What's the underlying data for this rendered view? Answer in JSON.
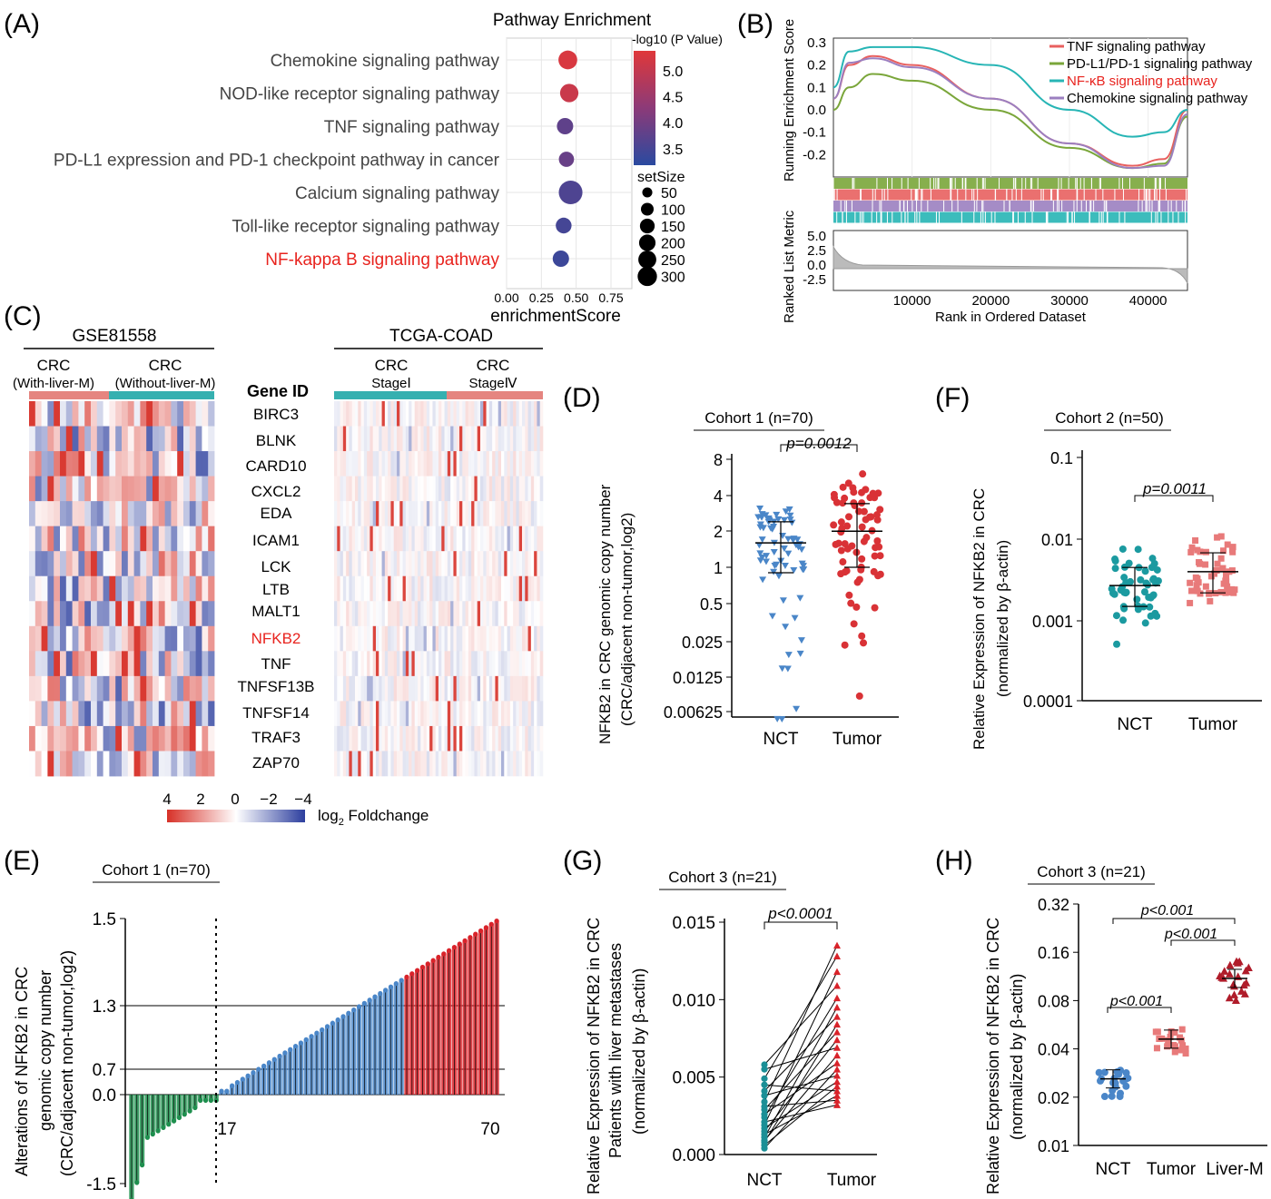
{
  "panels": {
    "A": "(A)",
    "B": "(B)",
    "C": "(C)",
    "D": "(D)",
    "E": "(E)",
    "F": "(F)",
    "G": "(G)",
    "H": "(H)"
  },
  "colors": {
    "red": "#d62728",
    "blue": "#4a86c8",
    "green": "#1e8f4e",
    "teal": "#1b9aa0",
    "salmon": "#e87a7a",
    "darkred": "#b01c2a",
    "grey": "#bbbbbb",
    "hm_red": "#d73027",
    "hm_blue": "#2c3e9e"
  },
  "chart_data": [
    {
      "panel": "A",
      "type": "scatter",
      "title": "Pathway Enrichment",
      "xlabel": "enrichmentScore",
      "xticks": [
        "0.00",
        "0.25",
        "0.50",
        "0.75"
      ],
      "xlim": [
        0,
        0.9
      ],
      "categories": [
        "Chemokine signaling pathway",
        "NOD-like receptor signaling pathway",
        "TNF signaling pathway",
        "PD-L1 expression and PD-1 checkpoint pathway in cancer",
        "Calcium signaling pathway",
        "Toll-like receptor signaling pathway",
        "NF-kappa B signaling pathway"
      ],
      "highlight": "NF-kappa B signaling pathway",
      "x": [
        0.44,
        0.45,
        0.42,
        0.43,
        0.46,
        0.41,
        0.39
      ],
      "neglog10p": [
        5.3,
        5.1,
        3.8,
        3.9,
        3.6,
        3.5,
        3.4
      ],
      "setsize": [
        150,
        140,
        100,
        80,
        280,
        90,
        100
      ],
      "colorbar": {
        "title": "-log10 (P Value)",
        "ticks": [
          "5.0",
          "4.5",
          "4.0",
          "3.5"
        ],
        "min": 3.2,
        "max": 5.4
      },
      "sizelegend": {
        "title": "setSize",
        "values": [
          "50",
          "100",
          "150",
          "200",
          "250",
          "300"
        ]
      }
    },
    {
      "panel": "B",
      "type": "line",
      "ylabel": "Running Enrichment Score",
      "ylabel2": "Ranked List Metric",
      "xlabel": "Rank in Ordered Dataset",
      "xticks": [
        "10000",
        "20000",
        "30000",
        "40000"
      ],
      "xmax": 45000,
      "yticks": [
        "0.3",
        "0.2",
        "0.1",
        "0.0",
        "-0.1",
        "-0.2"
      ],
      "ylim": [
        -0.3,
        0.32
      ],
      "y2ticks": [
        "5.0",
        "2.5",
        "0.0",
        "-2.5"
      ],
      "series": [
        {
          "name": "TNF signaling pathway",
          "color": "#e8605f",
          "x": [
            0,
            2000,
            5000,
            10000,
            20000,
            30000,
            38000,
            42000,
            45000
          ],
          "y": [
            0.05,
            0.2,
            0.24,
            0.2,
            0.05,
            -0.15,
            -0.25,
            -0.22,
            0.0
          ]
        },
        {
          "name": "PD-L1/PD-1 signaling pathway",
          "color": "#7aa63a",
          "x": [
            0,
            2000,
            5000,
            10000,
            20000,
            30000,
            38000,
            42000,
            45000
          ],
          "y": [
            0.0,
            0.1,
            0.16,
            0.13,
            0.0,
            -0.17,
            -0.26,
            -0.24,
            -0.03
          ]
        },
        {
          "name": "NF-κB signaling pathway",
          "color": "#27b5b5",
          "nameColor": "#e8231e",
          "x": [
            0,
            2000,
            5000,
            10000,
            20000,
            30000,
            38000,
            42000,
            45000
          ],
          "y": [
            0.1,
            0.26,
            0.28,
            0.28,
            0.2,
            0.0,
            -0.12,
            -0.1,
            0.0
          ]
        },
        {
          "name": "Chemokine signaling pathway",
          "color": "#9b7fc0",
          "x": [
            0,
            2000,
            5000,
            10000,
            20000,
            30000,
            38000,
            42000,
            45000
          ],
          "y": [
            0.05,
            0.21,
            0.23,
            0.19,
            0.05,
            -0.15,
            -0.26,
            -0.25,
            -0.02
          ]
        }
      ]
    },
    {
      "panel": "C",
      "type": "heatmap",
      "left_title": "GSE81558",
      "left_groups": [
        [
          "CRC",
          "(With-liver-M)"
        ],
        [
          "CRC",
          "(Without-liver-M)"
        ]
      ],
      "right_title": "TCGA-COAD",
      "right_groups": [
        [
          "CRC",
          "StageⅠ"
        ],
        [
          "CRC",
          "StageⅣ"
        ]
      ],
      "gene_header": "Gene ID",
      "genes": [
        "BIRC3",
        "BLNK",
        "CARD10",
        "CXCL2",
        "EDA",
        "ICAM1",
        "LCK",
        "LTB",
        "MALT1",
        "NFKB2",
        "TNF",
        "TNFSF13B",
        "TNFSF14",
        "TRAF3",
        "ZAP70"
      ],
      "highlight": "NFKB2",
      "scale_ticks": [
        "4",
        "2",
        "0",
        "−2",
        "−4"
      ],
      "scale_label": "log",
      "scale_sub": "2",
      "scale_label2": " Foldchange"
    },
    {
      "panel": "D",
      "type": "scatter",
      "cohort": "Cohort 1 (n=70)",
      "ylabel": "NFKB2 in CRC genomic copy number",
      "ylabel2": "(CRC/adjacent non-tumor,log2)",
      "categories": [
        "NCT",
        "Tumor"
      ],
      "yticks": [
        "8",
        "4",
        "2",
        "1",
        "0.5",
        "0.025",
        "0.0125",
        "0.00625"
      ],
      "pvalue": "p=0.0012",
      "groups": [
        {
          "name": "NCT",
          "median": 1.6,
          "q1": 0.9,
          "q3": 2.4,
          "min": 0.01,
          "max": 3.2
        },
        {
          "name": "Tumor",
          "median": 2.0,
          "q1": 1.0,
          "q3": 3.4,
          "min": 0.03,
          "max": 6.5
        }
      ]
    },
    {
      "panel": "F",
      "type": "scatter",
      "cohort": "Cohort 2 (n=50)",
      "ylabel": "Relative Expression of NFKB2 in CRC",
      "ylabel2": "(normalized by β-actin)",
      "categories": [
        "NCT",
        "Tumor"
      ],
      "yticks": [
        "0.1",
        "0.01",
        "0.001",
        "0.0001"
      ],
      "pvalue": "p=0.0011",
      "groups": [
        {
          "name": "NCT",
          "median": 0.0027,
          "q1": 0.0015,
          "q3": 0.0045,
          "min": 0.00035,
          "max": 0.009
        },
        {
          "name": "Tumor",
          "median": 0.004,
          "q1": 0.0022,
          "q3": 0.0068,
          "min": 0.0008,
          "max": 0.0145
        }
      ]
    },
    {
      "panel": "E",
      "type": "bar",
      "cohort": "Cohort 1 (n=70)",
      "ylabel": "Alterations of NFKB2 in CRC",
      "ylabel2": "genomic copy number",
      "ylabel3": "(CRC/adjacent non-tumor,log2)",
      "yticks": [
        "1.5",
        "1.3",
        "0.7",
        "0.0",
        "-1.5"
      ],
      "ylim": [
        -1.5,
        1.5
      ],
      "hlines": [
        1.3,
        0.7,
        0.0
      ],
      "markers": [
        "17",
        "70"
      ],
      "n": 70,
      "n_neg": 17,
      "n_red_start": 52,
      "min": -0.95,
      "max": 1.48
    },
    {
      "panel": "G",
      "type": "line",
      "cohort": "Cohort 3 (n=21)",
      "ylabel": "Relative Expression of NFKB2 in CRC",
      "ylabel2": "Patients with liver metastases",
      "ylabel3": "(normalized by β-actin)",
      "categories": [
        "NCT",
        "Tumor"
      ],
      "yticks": [
        "0.015",
        "0.010",
        "0.005",
        "0.000"
      ],
      "ylim": [
        0,
        0.015
      ],
      "pvalue": "p<0.0001",
      "nct": [
        0.0058,
        0.0055,
        0.0049,
        0.0045,
        0.0041,
        0.0038,
        0.0034,
        0.0031,
        0.0029,
        0.0026,
        0.0024,
        0.0021,
        0.0019,
        0.0017,
        0.0015,
        0.0013,
        0.0011,
        0.0009,
        0.0008,
        0.0006,
        0.0004
      ],
      "tumor": [
        0.0135,
        0.0128,
        0.0118,
        0.0109,
        0.0101,
        0.0095,
        0.0089,
        0.0084,
        0.0079,
        0.0074,
        0.0069,
        0.0064,
        0.0059,
        0.0055,
        0.0051,
        0.0047,
        0.0044,
        0.0041,
        0.0038,
        0.0035,
        0.0032
      ]
    },
    {
      "panel": "H",
      "type": "scatter",
      "cohort": "Cohort 3 (n=21)",
      "ylabel": "Relative Expression of NFKB2 in CRC",
      "ylabel2": "(normalized by β-actin)",
      "categories": [
        "NCT",
        "Tumor",
        "Liver-M"
      ],
      "yticks": [
        "0.32",
        "0.16",
        "0.08",
        "0.04",
        "0.02",
        "0.01"
      ],
      "pvalues": [
        "p<0.001",
        "p<0.001",
        "p<0.001"
      ],
      "groups": [
        {
          "name": "NCT",
          "median": 0.026,
          "min": 0.018,
          "max": 0.033
        },
        {
          "name": "Tumor",
          "median": 0.046,
          "min": 0.034,
          "max": 0.058
        },
        {
          "name": "Liver-M",
          "median": 0.11,
          "min": 0.07,
          "max": 0.16
        }
      ]
    }
  ]
}
